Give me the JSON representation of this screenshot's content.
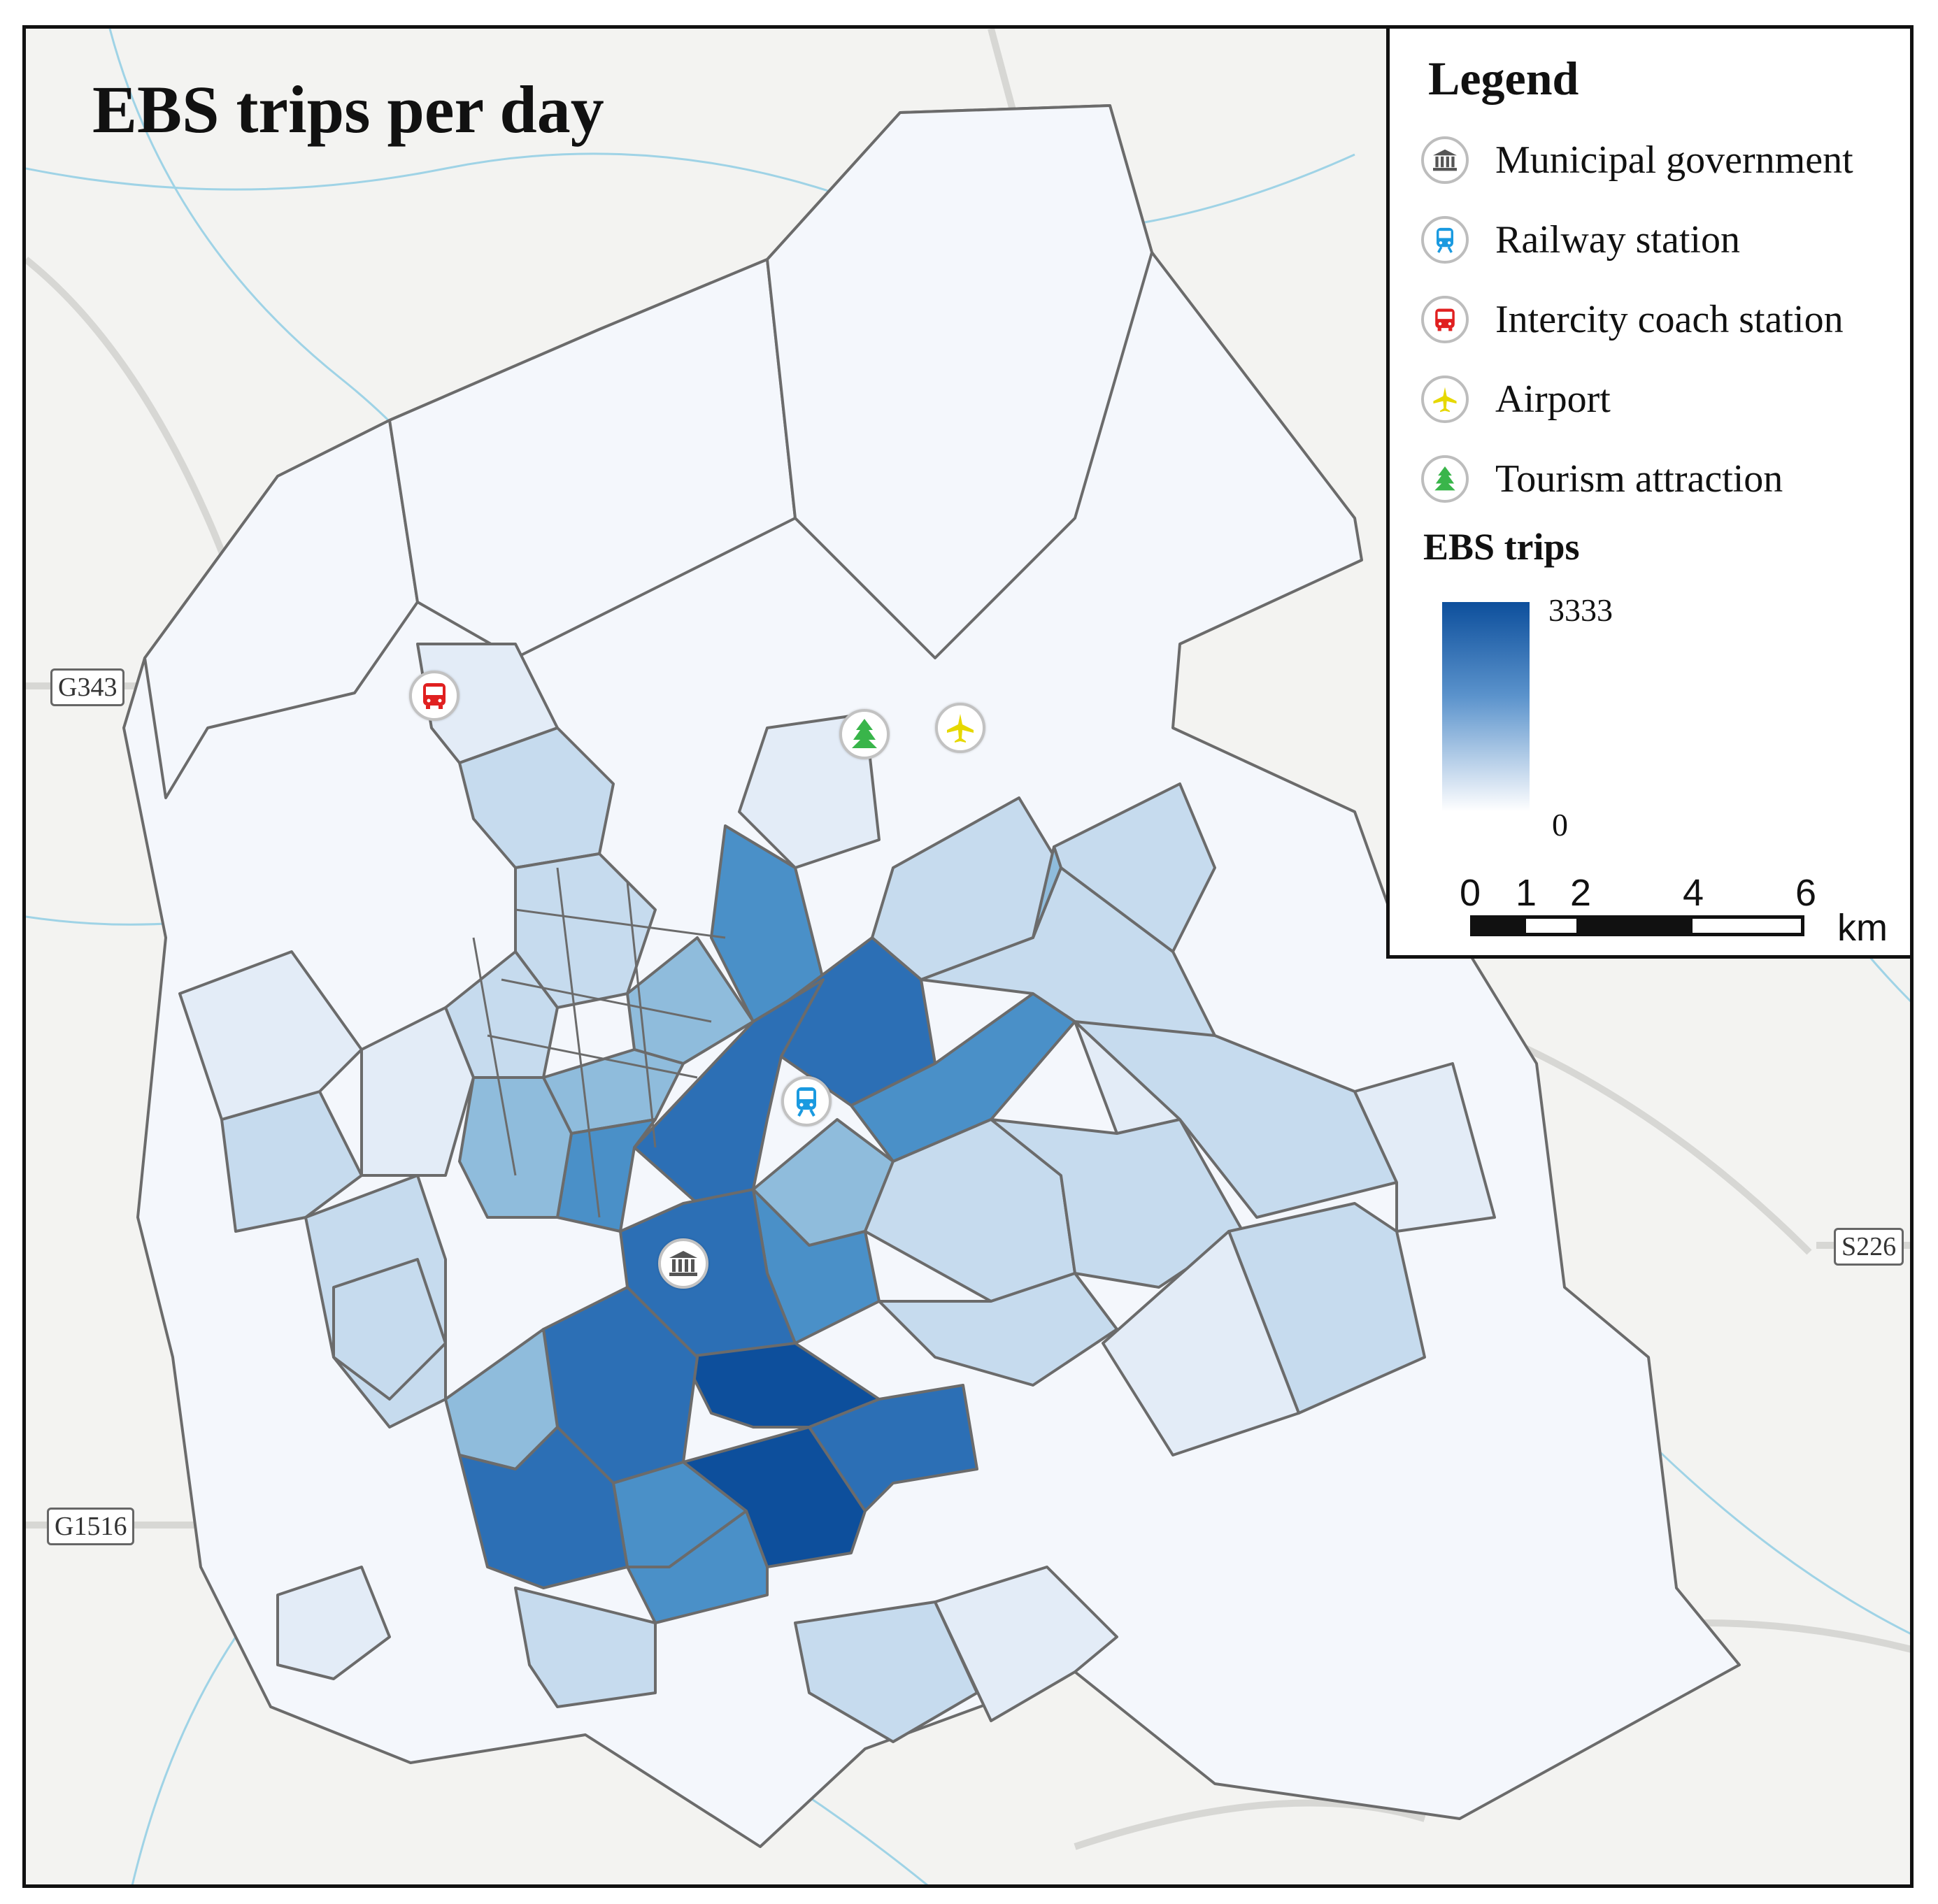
{
  "map": {
    "title": "EBS trips per day",
    "road_shields": [
      "G343",
      "G1516",
      "S226"
    ]
  },
  "legend": {
    "title": "Legend",
    "items": [
      {
        "label": "Municipal government",
        "icon": "government-building-icon",
        "color": "#555555"
      },
      {
        "label": "Railway station",
        "icon": "train-icon",
        "color": "#1a9ae0"
      },
      {
        "label": "Intercity coach station",
        "icon": "bus-icon",
        "color": "#e02020"
      },
      {
        "label": "Airport",
        "icon": "airplane-icon",
        "color": "#e6d800"
      },
      {
        "label": "Tourism attraction",
        "icon": "tree-icon",
        "color": "#39b54a"
      }
    ],
    "scale_title": "EBS trips",
    "scale_max": "3333",
    "scale_min": "0",
    "scale_bar_labels": [
      "0",
      "1",
      "2",
      "4",
      "6"
    ],
    "scale_bar_unit": "km"
  },
  "colors": {
    "darkest": "#0d4f9c",
    "dark": "#2c6fb5",
    "mid": "#4a90c8",
    "light_mid": "#8fbcdc",
    "light": "#c6dbee",
    "very_light": "#e3ecf7",
    "base": "#f4f7fc"
  }
}
